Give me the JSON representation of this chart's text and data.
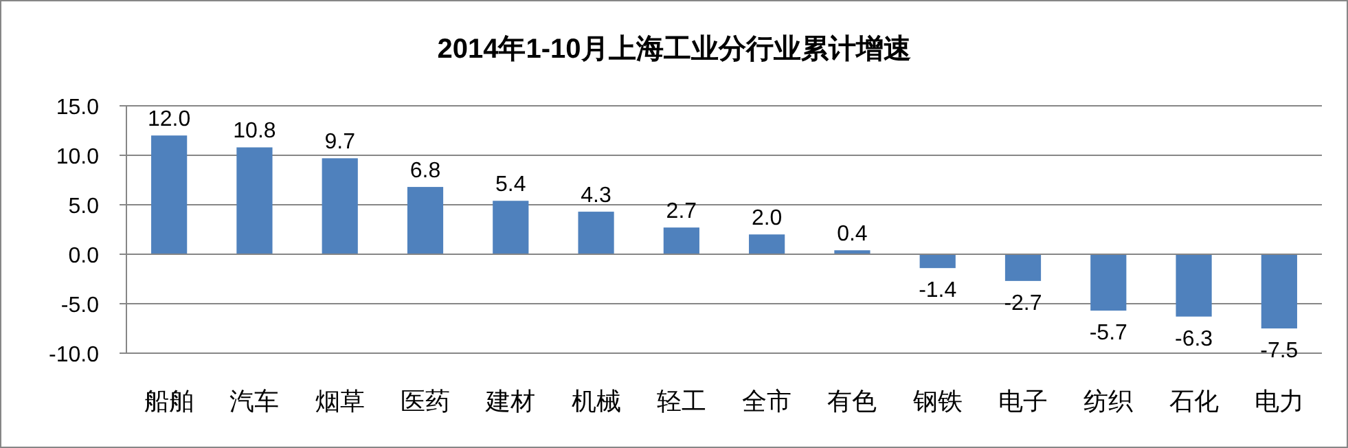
{
  "chart_data": {
    "type": "bar",
    "title": "2014年1-10月上海工业分行业累计增速",
    "categories": [
      "船舶",
      "汽车",
      "烟草",
      "医药",
      "建材",
      "机械",
      "轻工",
      "全市",
      "有色",
      "钢铁",
      "电子",
      "纺织",
      "石化",
      "电力"
    ],
    "values": [
      12.0,
      10.8,
      9.7,
      6.8,
      5.4,
      4.3,
      2.7,
      2.0,
      0.4,
      -1.4,
      -2.7,
      -5.7,
      -6.3,
      -7.5
    ],
    "value_labels": [
      "12.0",
      "10.8",
      "9.7",
      "6.8",
      "5.4",
      "4.3",
      "2.7",
      "2.0",
      "0.4",
      "-1.4",
      "-2.7",
      "-5.7",
      "-6.3",
      "-7.5"
    ],
    "color": "#4f81bd",
    "ylim": [
      -10,
      15
    ],
    "yticks": [
      {
        "value": -10,
        "label": "-10.0"
      },
      {
        "value": -5,
        "label": "-5.0"
      },
      {
        "value": 0,
        "label": "0.0"
      },
      {
        "value": 5,
        "label": "5.0"
      },
      {
        "value": 10,
        "label": "10.0"
      },
      {
        "value": 15,
        "label": "15.0"
      }
    ],
    "grid": "y"
  }
}
